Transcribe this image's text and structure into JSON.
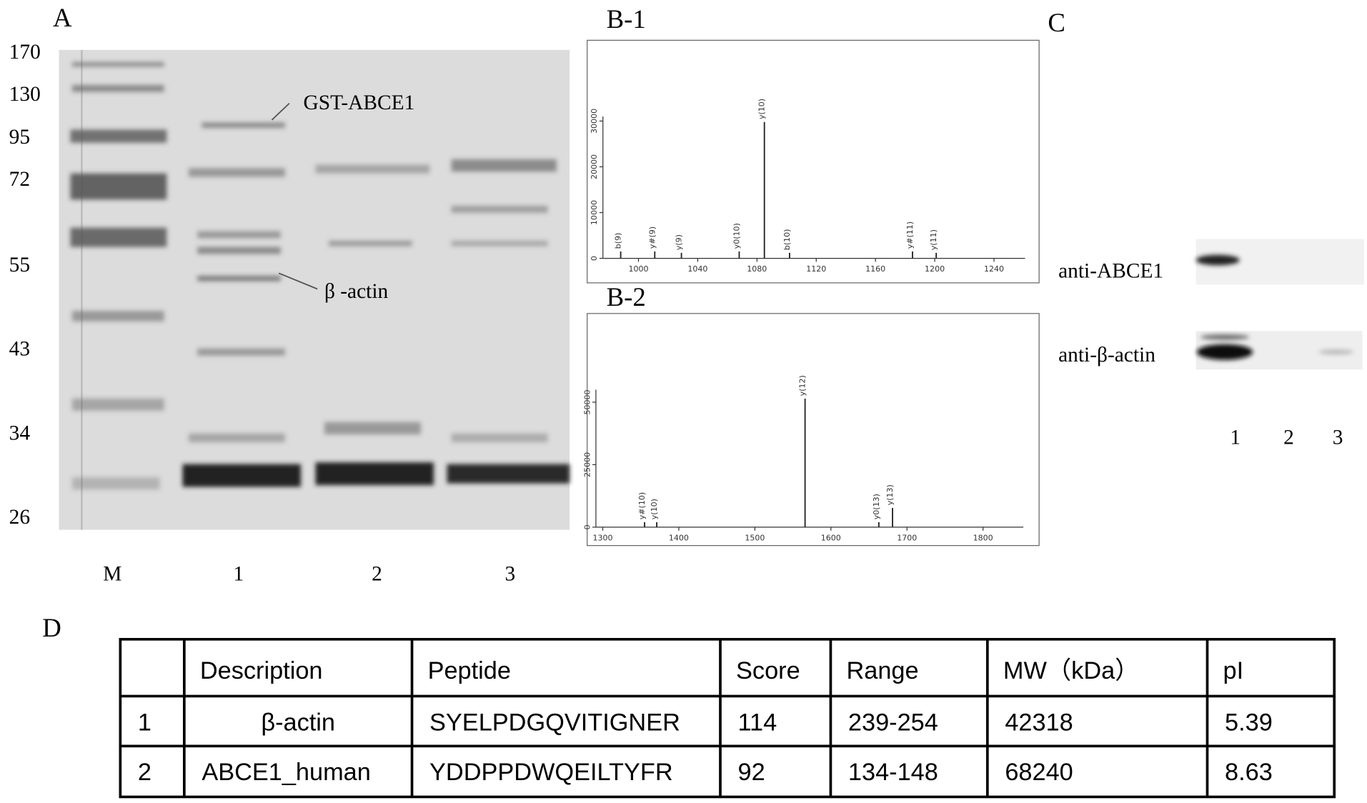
{
  "panel_a": {
    "label": "A",
    "markers": [
      170,
      130,
      95,
      72,
      55,
      43,
      34,
      26
    ],
    "lanes": [
      "M",
      "1",
      "2",
      "3"
    ],
    "annotations": [
      "GST-ABCE1",
      "β -actin"
    ]
  },
  "panel_b1": {
    "label": "B-1",
    "chart": {
      "type": "spectrum",
      "xlim": [
        976,
        1261
      ],
      "xticks": [
        1000,
        1040,
        1080,
        1120,
        1160,
        1200,
        1240
      ],
      "ylim": [
        0,
        31000
      ],
      "yticks": [
        0,
        10000,
        20000,
        30000
      ],
      "peaks": [
        {
          "x": 988,
          "y": 1500,
          "label": "b(9)"
        },
        {
          "x": 1011,
          "y": 1500,
          "label": "y#(9)"
        },
        {
          "x": 1029,
          "y": 1200,
          "label": "y(9)"
        },
        {
          "x": 1068,
          "y": 1500,
          "label": "y0(10)"
        },
        {
          "x": 1085,
          "y": 29800,
          "label": "y(10)"
        },
        {
          "x": 1102,
          "y": 1200,
          "label": "b(10)"
        },
        {
          "x": 1185,
          "y": 1500,
          "label": "y#(11)"
        },
        {
          "x": 1201,
          "y": 1200,
          "label": "y(11)"
        }
      ]
    }
  },
  "panel_b2": {
    "label": "B-2",
    "chart": {
      "type": "spectrum",
      "xlim": [
        1291,
        1853
      ],
      "xticks": [
        1300,
        1400,
        1500,
        1600,
        1700,
        1800
      ],
      "ylim": [
        0,
        55000
      ],
      "yticks": [
        0,
        25000,
        50000
      ],
      "peaks": [
        {
          "x": 1355,
          "y": 2000,
          "label": "y#(10)"
        },
        {
          "x": 1371,
          "y": 2000,
          "label": "y(10)"
        },
        {
          "x": 1566,
          "y": 51400,
          "label": "y(12)"
        },
        {
          "x": 1663,
          "y": 2000,
          "label": "y0(13)"
        },
        {
          "x": 1681,
          "y": 7700,
          "label": "y(13)"
        }
      ]
    }
  },
  "panel_c": {
    "label": "C",
    "rows": [
      "anti-ABCE1",
      "anti-β-actin"
    ],
    "lanes": [
      "1",
      "2",
      "3"
    ]
  },
  "panel_d": {
    "label": "D",
    "header": [
      "Description",
      "Peptide",
      "Score",
      "Range",
      "MW（kDa）",
      "pI"
    ],
    "rows": [
      [
        "1",
        "β-actin",
        "SYELPDGQVITIGNER",
        "114",
        "239-254",
        "42318",
        "5.39"
      ],
      [
        "2",
        "ABCE1_human",
        "YDDPPDWQEILTYFR",
        "92",
        "134-148",
        "68240",
        "8.63"
      ]
    ]
  }
}
